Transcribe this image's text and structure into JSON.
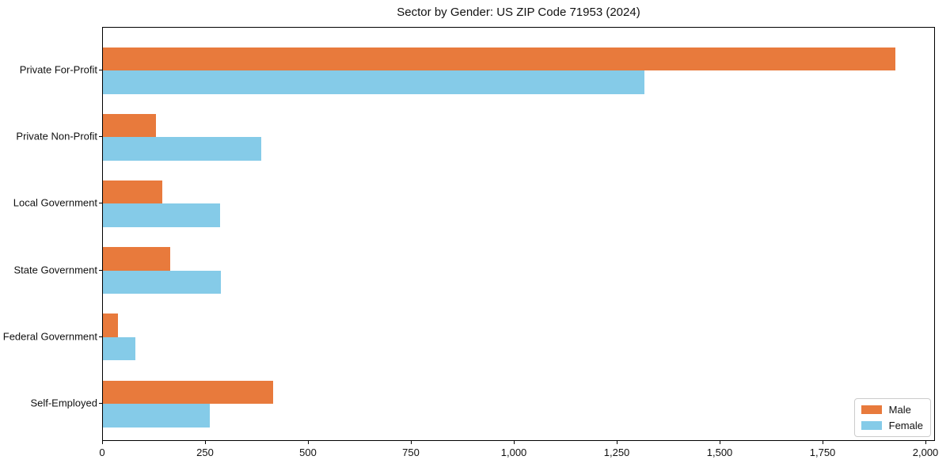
{
  "chart_data": {
    "type": "bar",
    "orientation": "horizontal",
    "title": "Sector by Gender: US ZIP Code 71953 (2024)",
    "categories": [
      "Private For-Profit",
      "Private Non-Profit",
      "Local Government",
      "State Government",
      "Federal Government",
      "Self-Employed"
    ],
    "series": [
      {
        "name": "Male",
        "color": "#e87a3c",
        "values": [
          1925,
          128,
          144,
          164,
          37,
          414
        ]
      },
      {
        "name": "Female",
        "color": "#85cbe8",
        "values": [
          1315,
          385,
          284,
          287,
          78,
          260
        ]
      }
    ],
    "xlim": [
      0,
      2023
    ],
    "xticks": [
      0,
      250,
      500,
      750,
      1000,
      1250,
      1500,
      1750,
      2000
    ],
    "xtick_labels": [
      "0",
      "250",
      "500",
      "750",
      "1,000",
      "1,250",
      "1,500",
      "1,750",
      "2,000"
    ],
    "grid": false,
    "legend": {
      "position": "lower right",
      "entries": [
        "Male",
        "Female"
      ]
    }
  }
}
